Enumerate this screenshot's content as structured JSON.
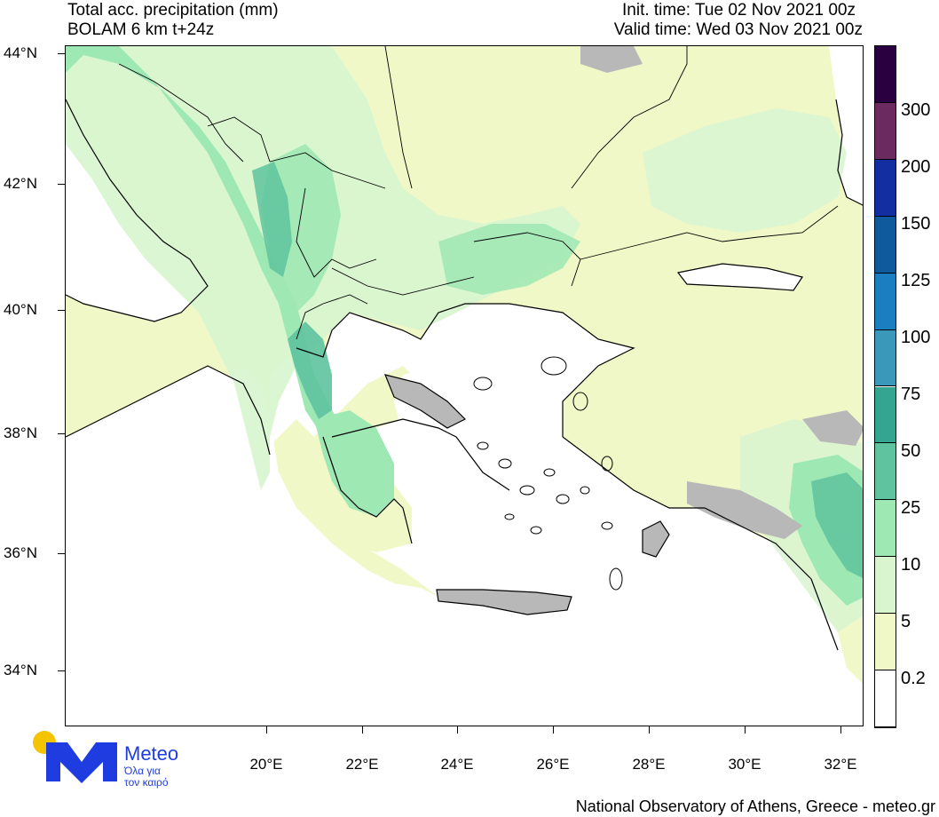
{
  "header": {
    "title_line1": "Total acc. precipitation (mm)",
    "title_line2": "BOLAM 6 km t+24z",
    "init_time": "Init. time: Tue 02 Nov 2021 00z",
    "valid_time": "Valid time: Wed 03 Nov 2021 00z"
  },
  "axes": {
    "lat_labels": [
      "44°N",
      "42°N",
      "40°N",
      "38°N",
      "36°N",
      "34°N"
    ],
    "lon_labels": [
      "20°E",
      "22°E",
      "24°E",
      "26°E",
      "28°E",
      "30°E",
      "32°E"
    ]
  },
  "colorbar": {
    "labels": [
      "0.2",
      "5",
      "10",
      "25",
      "50",
      "75",
      "100",
      "125",
      "150",
      "200",
      "300"
    ],
    "colors": [
      "#ffffff",
      "#f0f8c8",
      "#d8f5d0",
      "#9ee8b4",
      "#5ec39e",
      "#34a590",
      "#3a98bb",
      "#1a7ec0",
      "#0f5a9a",
      "#132ea0",
      "#6b2a60",
      "#2b0040"
    ]
  },
  "map_colors": {
    "sea": "#ffffff",
    "land_dry": "#b8b8b8",
    "light": "#f0f8c8",
    "pale_green": "#d8f5d0",
    "green": "#9ee8b4",
    "teal": "#5ec39e"
  },
  "logo": {
    "name": "Meteo",
    "tagline_line1": "Όλα για",
    "tagline_line2": "τον καιρό"
  },
  "footer": {
    "credit": "National Observatory of Athens, Greece - meteo.gr"
  }
}
